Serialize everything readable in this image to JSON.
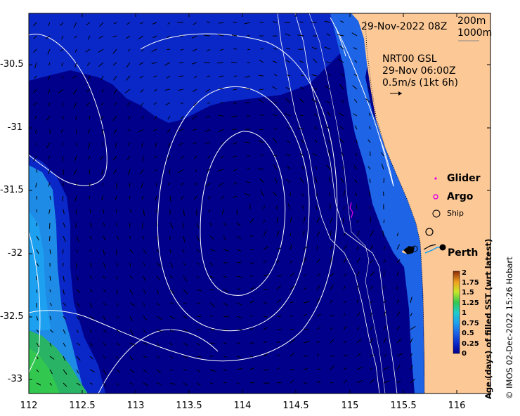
{
  "header": {
    "date_label": "29-Nov-2022 08Z",
    "depth_200": "200m",
    "depth_1000": "1000m"
  },
  "model": {
    "line1": "NRT00 GSL",
    "line2": "29-Nov 06:00Z",
    "line3": "0.5m/s (1kt 6h)"
  },
  "legend": {
    "glider": "Glider",
    "argo": "Argo",
    "ship": "Ship",
    "perth": "Perth"
  },
  "colors": {
    "land": "#fcc896",
    "deep": "#00008b",
    "mid": "#0a28c8",
    "shelf": "#1e64e6",
    "glider": "#e600e6",
    "argo": "#e600e6"
  },
  "axes": {
    "y_ticks": [
      "-30.5",
      "-31",
      "-31.5",
      "-32",
      "-32.5",
      "-33"
    ],
    "x_ticks": [
      "112",
      "112.5",
      "113",
      "113.5",
      "114",
      "114.5",
      "115",
      "115.5",
      "116"
    ]
  },
  "colorbar": {
    "ticks": [
      "2",
      "1.75",
      "1.5",
      "1.25",
      "1",
      "0.75",
      "0.5",
      "0.25",
      "0"
    ],
    "label": "Age (days) of filled SST (wrt latest)"
  },
  "credit": "© IMOS 02-Dec-2022 15:26 Hobart"
}
